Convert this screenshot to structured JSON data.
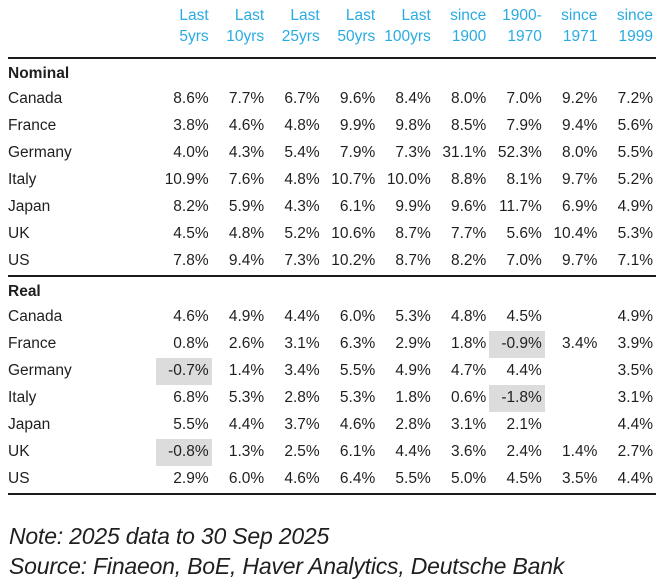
{
  "colors": {
    "header_text": "#29ABE2",
    "highlight_bg": "#DCDCDC",
    "body_text": "#1F1F1F",
    "rule": "#1A1A1A"
  },
  "chart_data": {
    "type": "table",
    "column_headers": [
      {
        "line1": "Last",
        "line2": "5yrs"
      },
      {
        "line1": "Last",
        "line2": "10yrs"
      },
      {
        "line1": "Last",
        "line2": "25yrs"
      },
      {
        "line1": "Last",
        "line2": "50yrs"
      },
      {
        "line1": "Last",
        "line2": "100yrs"
      },
      {
        "line1": "since",
        "line2": "1900"
      },
      {
        "line1": "1900-",
        "line2": "1970"
      },
      {
        "line1": "since",
        "line2": "1971"
      },
      {
        "line1": "since",
        "line2": "1999"
      }
    ],
    "sections": [
      {
        "label": "Nominal",
        "rows": [
          {
            "country": "Canada",
            "values": [
              "8.6%",
              "7.7%",
              "6.7%",
              "9.6%",
              "8.4%",
              "8.0%",
              "7.0%",
              "9.2%",
              "7.2%"
            ],
            "highlights": []
          },
          {
            "country": "France",
            "values": [
              "3.8%",
              "4.6%",
              "4.8%",
              "9.9%",
              "9.8%",
              "8.5%",
              "7.9%",
              "9.4%",
              "5.6%"
            ],
            "highlights": []
          },
          {
            "country": "Germany",
            "values": [
              "4.0%",
              "4.3%",
              "5.4%",
              "7.9%",
              "7.3%",
              "31.1%",
              "52.3%",
              "8.0%",
              "5.5%"
            ],
            "highlights": []
          },
          {
            "country": "Italy",
            "values": [
              "10.9%",
              "7.6%",
              "4.8%",
              "10.7%",
              "10.0%",
              "8.8%",
              "8.1%",
              "9.7%",
              "5.2%"
            ],
            "highlights": []
          },
          {
            "country": "Japan",
            "values": [
              "8.2%",
              "5.9%",
              "4.3%",
              "6.1%",
              "9.9%",
              "9.6%",
              "11.7%",
              "6.9%",
              "4.9%"
            ],
            "highlights": []
          },
          {
            "country": "UK",
            "values": [
              "4.5%",
              "4.8%",
              "5.2%",
              "10.6%",
              "8.7%",
              "7.7%",
              "5.6%",
              "10.4%",
              "5.3%"
            ],
            "highlights": []
          },
          {
            "country": "US",
            "values": [
              "7.8%",
              "9.4%",
              "7.3%",
              "10.2%",
              "8.7%",
              "8.2%",
              "7.0%",
              "9.7%",
              "7.1%"
            ],
            "highlights": []
          }
        ]
      },
      {
        "label": "Real",
        "rows": [
          {
            "country": "Canada",
            "values": [
              "4.6%",
              "4.9%",
              "4.4%",
              "6.0%",
              "5.3%",
              "4.8%",
              "4.5%",
              "",
              "4.9%"
            ],
            "highlights": []
          },
          {
            "country": "France",
            "values": [
              "0.8%",
              "2.6%",
              "3.1%",
              "6.3%",
              "2.9%",
              "1.8%",
              "-0.9%",
              "3.4%",
              "3.9%"
            ],
            "highlights": [
              6
            ]
          },
          {
            "country": "Germany",
            "values": [
              "-0.7%",
              "1.4%",
              "3.4%",
              "5.5%",
              "4.9%",
              "4.7%",
              "4.4%",
              "",
              "3.5%"
            ],
            "highlights": [
              0
            ]
          },
          {
            "country": "Italy",
            "values": [
              "6.8%",
              "5.3%",
              "2.8%",
              "5.3%",
              "1.8%",
              "0.6%",
              "-1.8%",
              "",
              "3.1%"
            ],
            "highlights": [
              6
            ]
          },
          {
            "country": "Japan",
            "values": [
              "5.5%",
              "4.4%",
              "3.7%",
              "4.6%",
              "2.8%",
              "3.1%",
              "2.1%",
              "",
              "4.4%"
            ],
            "highlights": []
          },
          {
            "country": "UK",
            "values": [
              "-0.8%",
              "1.3%",
              "2.5%",
              "6.1%",
              "4.4%",
              "3.6%",
              "2.4%",
              "1.4%",
              "2.7%"
            ],
            "highlights": [
              0
            ]
          },
          {
            "country": "US",
            "values": [
              "2.9%",
              "6.0%",
              "4.6%",
              "6.4%",
              "5.5%",
              "5.0%",
              "4.5%",
              "3.5%",
              "4.4%"
            ],
            "highlights": []
          }
        ]
      }
    ]
  },
  "footer": {
    "note": "Note: 2025 data to 30 Sep 2025",
    "source": "Source: Finaeon, BoE, Haver Analytics, Deutsche Bank"
  }
}
